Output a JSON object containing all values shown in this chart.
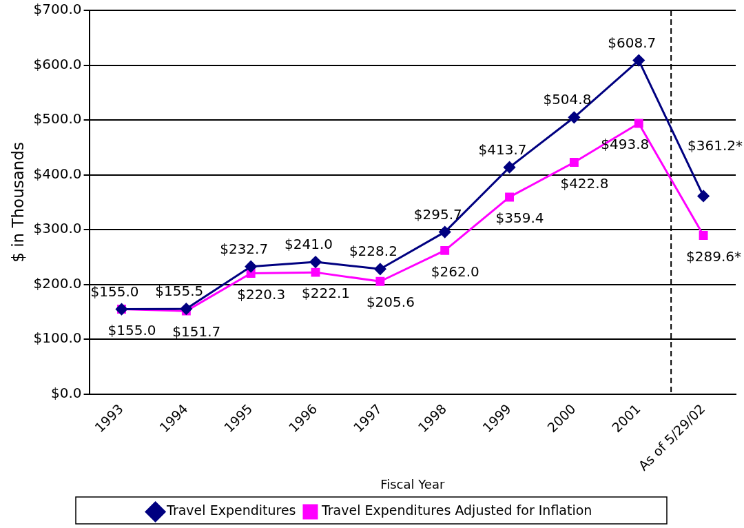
{
  "chart_data": {
    "type": "line",
    "xlabel": "Fiscal Year",
    "ylabel": "$ in Thousands",
    "categories": [
      "1993",
      "1994",
      "1995",
      "1996",
      "1997",
      "1998",
      "1999",
      "2000",
      "2001",
      "As of 5/29/02"
    ],
    "series": [
      {
        "name": "Travel Expenditures",
        "color": "#000080",
        "marker": "diamond",
        "values": [
          155.0,
          155.5,
          232.7,
          241.0,
          228.2,
          295.7,
          413.7,
          504.8,
          608.7,
          361.2
        ],
        "value_labels": [
          "$155.0",
          "$155.5",
          "$232.7",
          "$241.0",
          "$228.2",
          "$295.7",
          "$413.7",
          "$504.8",
          "$608.7",
          "$361.2*"
        ]
      },
      {
        "name": "Travel Expenditures Adjusted for Inflation",
        "color": "#ff00ff",
        "marker": "square",
        "values": [
          155.0,
          151.7,
          220.3,
          222.1,
          205.6,
          262.0,
          359.4,
          422.8,
          493.8,
          289.6
        ],
        "value_labels": [
          "$155.0",
          "$151.7",
          "$220.3",
          "$222.1",
          "$205.6",
          "$262.0",
          "$359.4",
          "$422.8",
          "$493.8",
          "$289.6*"
        ]
      }
    ],
    "ylim": [
      0,
      700
    ],
    "yticks": [
      {
        "value": 0,
        "label": "$0.0"
      },
      {
        "value": 100,
        "label": "$100.0"
      },
      {
        "value": 200,
        "label": "$200.0"
      },
      {
        "value": 300,
        "label": "$300.0"
      },
      {
        "value": 400,
        "label": "$400.0"
      },
      {
        "value": 500,
        "label": "$500.0"
      },
      {
        "value": 600,
        "label": "$600.0"
      },
      {
        "value": 700,
        "label": "$700.0"
      }
    ],
    "ref_lines": [
      {
        "axis": "x",
        "value": "As of 5/29/02",
        "color": "#000000",
        "line_style": "dashed"
      }
    ],
    "grid": "y",
    "legend": "bottom",
    "line_style": "solid"
  }
}
